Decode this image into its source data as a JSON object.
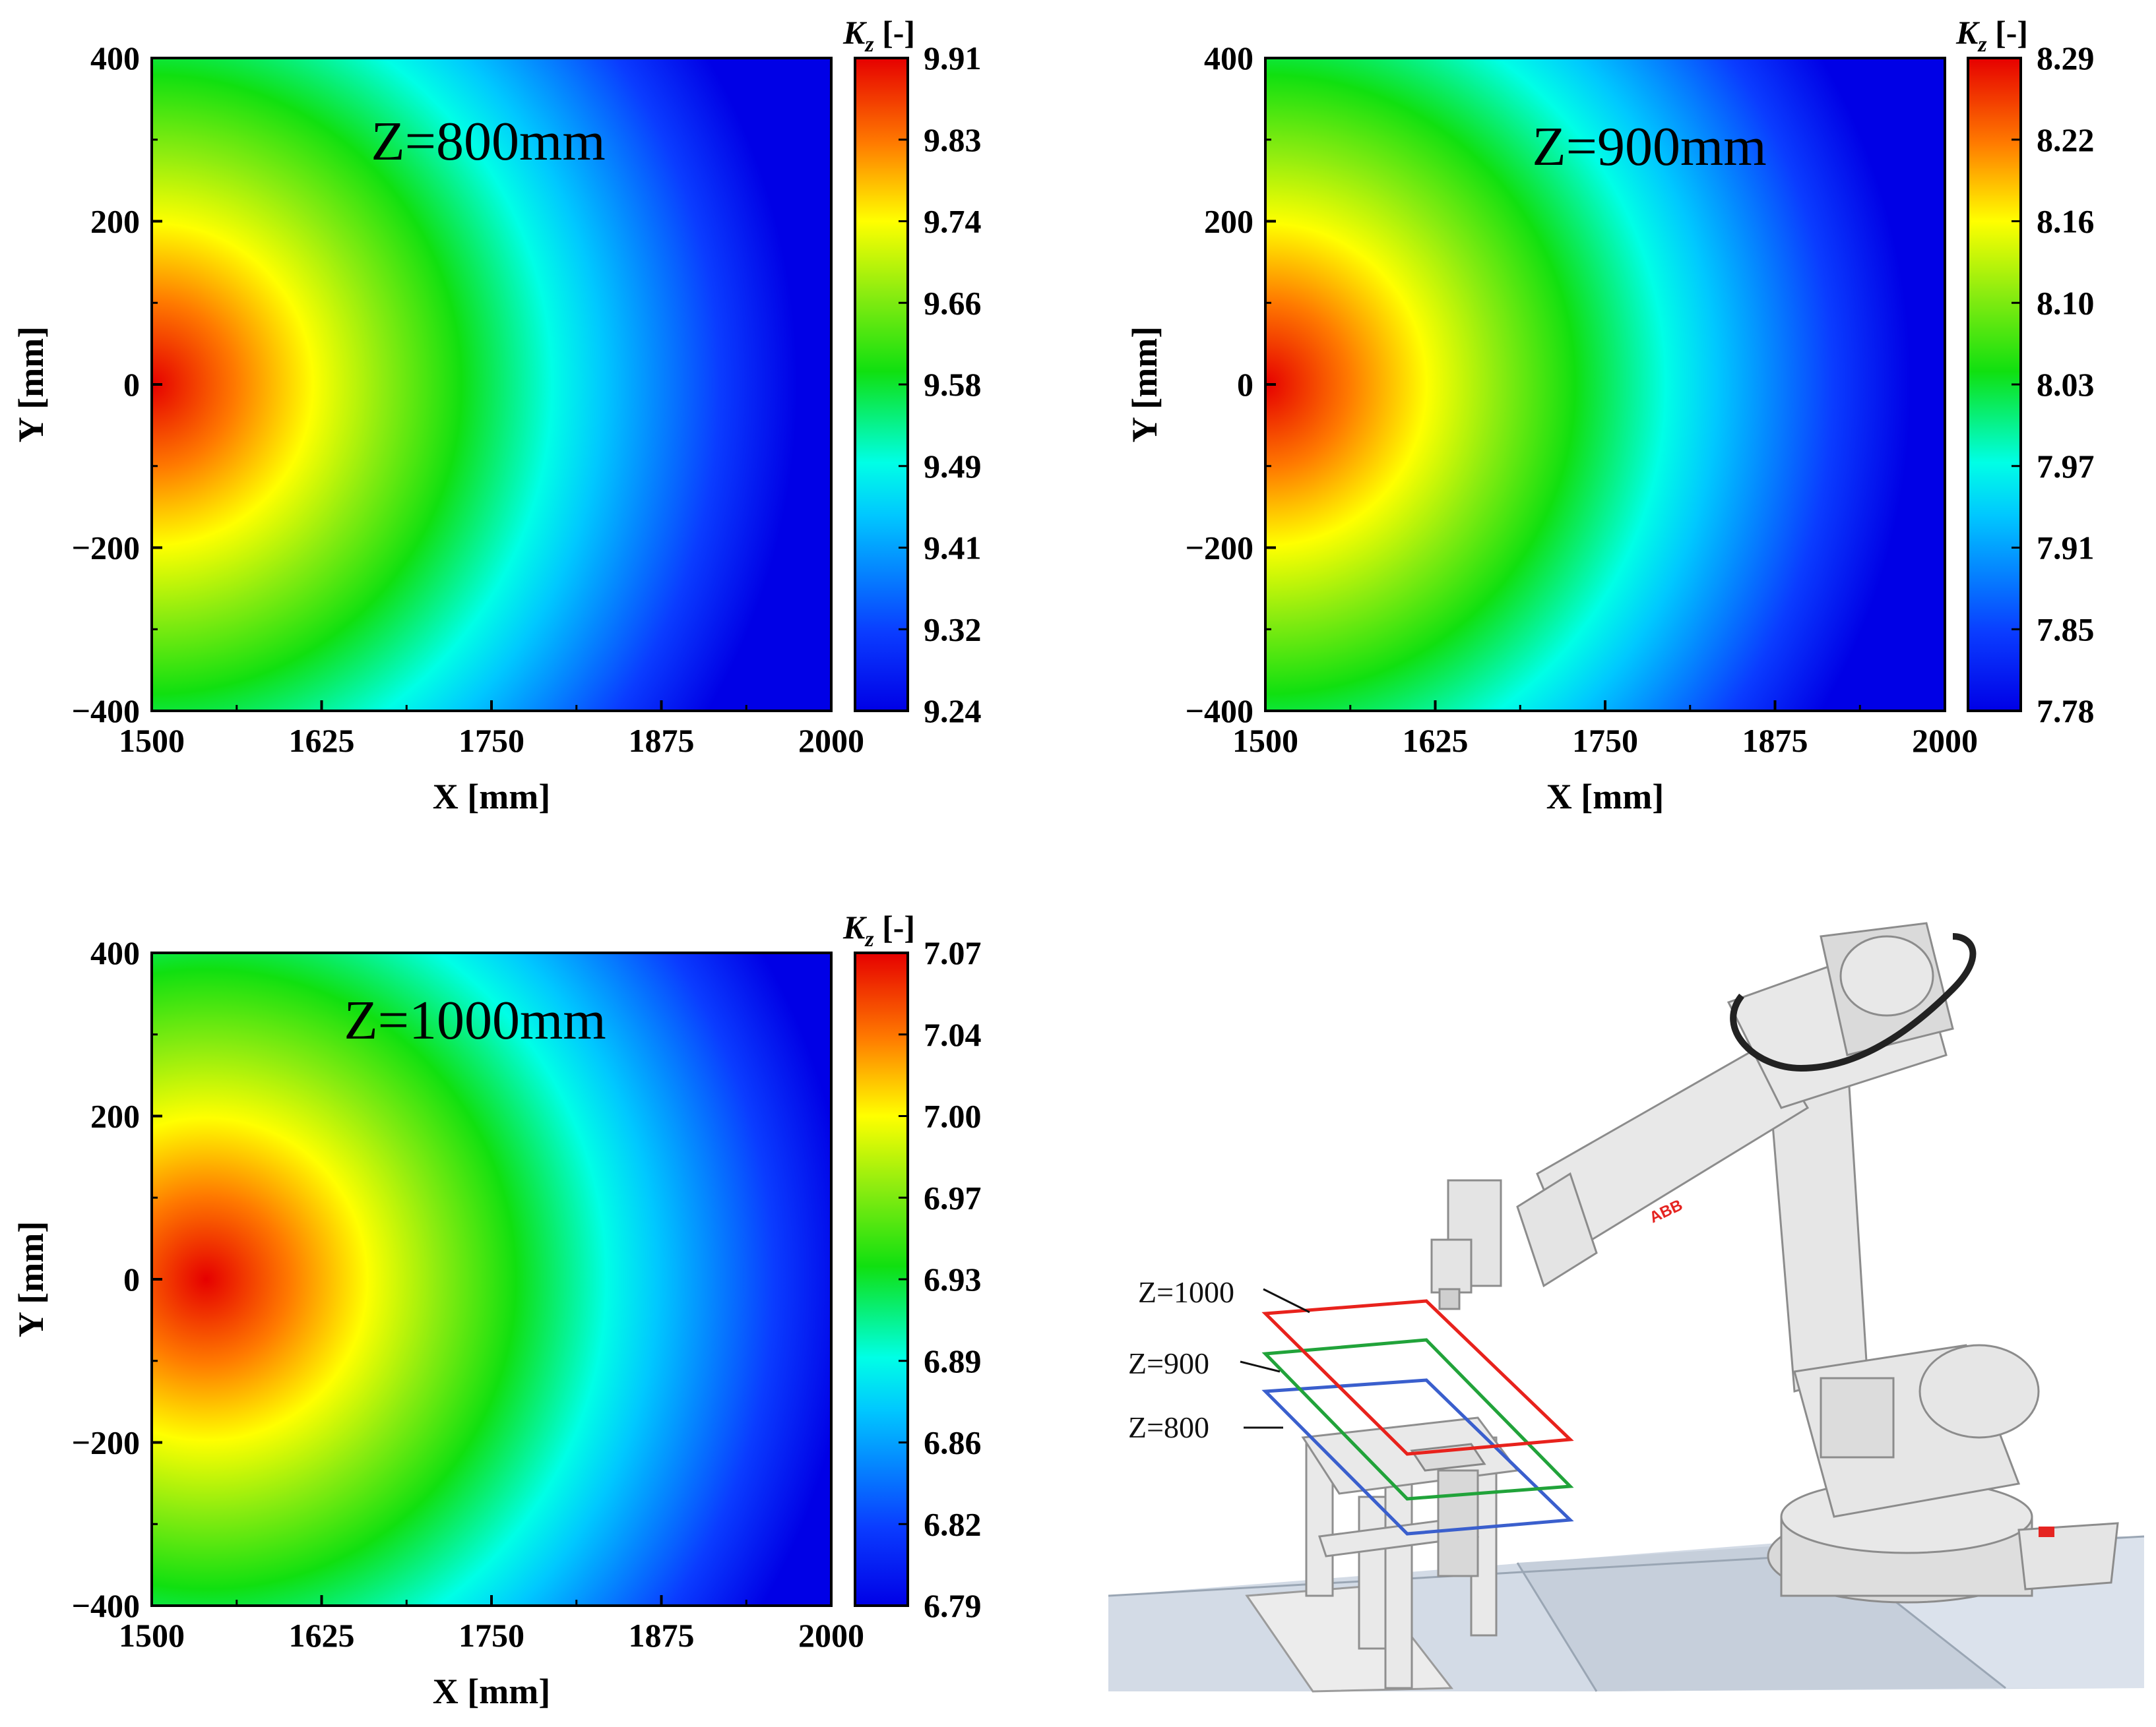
{
  "chart_data": [
    {
      "type": "heatmap",
      "title": "Z=800mm",
      "xlabel": "X [mm]",
      "ylabel": "Y [mm]",
      "colorbar_label": "K_z [-]",
      "xlim": [
        1500,
        2000
      ],
      "ylim": [
        -400,
        400
      ],
      "x_ticks": [
        "1500",
        "1625",
        "1750",
        "1875",
        "2000"
      ],
      "y_ticks": [
        "400",
        "200",
        "0",
        "−200",
        "−400"
      ],
      "colorbar_ticks": [
        "9.91",
        "9.83",
        "9.74",
        "9.66",
        "9.58",
        "9.49",
        "9.41",
        "9.32",
        "9.24"
      ],
      "vmin": 9.24,
      "vmax": 9.91,
      "peak_x": 1500,
      "peak_y": 0
    },
    {
      "type": "heatmap",
      "title": "Z=900mm",
      "xlabel": "X [mm]",
      "ylabel": "Y [mm]",
      "colorbar_label": "K_z [-]",
      "xlim": [
        1500,
        2000
      ],
      "ylim": [
        -400,
        400
      ],
      "x_ticks": [
        "1500",
        "1625",
        "1750",
        "1875",
        "2000"
      ],
      "y_ticks": [
        "400",
        "200",
        "0",
        "−200",
        "−400"
      ],
      "colorbar_ticks": [
        "8.29",
        "8.22",
        "8.16",
        "8.10",
        "8.03",
        "7.97",
        "7.91",
        "7.85",
        "7.78"
      ],
      "vmin": 7.78,
      "vmax": 8.29,
      "peak_x": 1500,
      "peak_y": 0
    },
    {
      "type": "heatmap",
      "title": "Z=1000mm",
      "xlabel": "X [mm]",
      "ylabel": "Y [mm]",
      "colorbar_label": "K_z [-]",
      "xlim": [
        1500,
        2000
      ],
      "ylim": [
        -400,
        400
      ],
      "x_ticks": [
        "1500",
        "1625",
        "1750",
        "1875",
        "2000"
      ],
      "y_ticks": [
        "400",
        "200",
        "0",
        "−200",
        "−400"
      ],
      "colorbar_ticks": [
        "7.07",
        "7.04",
        "7.00",
        "6.97",
        "6.93",
        "6.89",
        "6.86",
        "6.82",
        "6.79"
      ],
      "vmin": 6.79,
      "vmax": 7.07,
      "peak_x": 1540,
      "peak_y": 0
    }
  ],
  "robot_figure": {
    "brand": "ABB",
    "planes": [
      {
        "label": "Z=1000",
        "color": "#e8221c"
      },
      {
        "label": "Z=900",
        "color": "#21a33a"
      },
      {
        "label": "Z=800",
        "color": "#3a5fcd"
      }
    ]
  }
}
